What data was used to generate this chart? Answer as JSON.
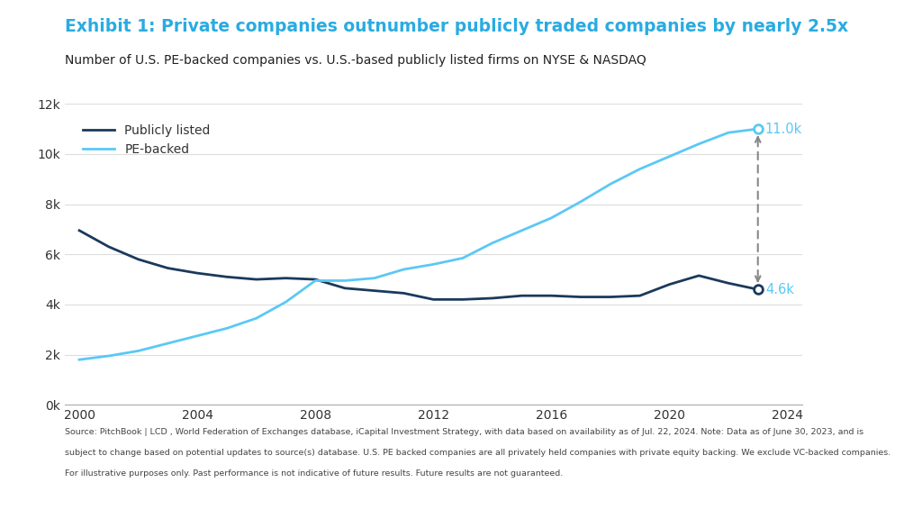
{
  "title": "Exhibit 1: Private companies outnumber publicly traded companies by nearly 2.5x",
  "subtitle": "Number of U.S. PE-backed companies vs. U.S.-based publicly listed firms on NYSE & NASDAQ",
  "title_color": "#29ABE2",
  "subtitle_color": "#222222",
  "footnote_line1": "Source: PitchBook | LCD , World Federation of Exchanges database, iCapital Investment Strategy, with data based on availability as of Jul. 22, 2024. Note: Data as of June 30, 2023, and is",
  "footnote_line2": "subject to change based on potential updates to source(s) database. U.S. PE backed companies are all privately held companies with private equity backing. We exclude VC-backed companies.",
  "footnote_line3": "For illustrative purposes only. Past performance is not indicative of future results. Future results are not guaranteed.",
  "publicly_listed": {
    "years": [
      2000,
      2001,
      2002,
      2003,
      2004,
      2005,
      2006,
      2007,
      2008,
      2009,
      2010,
      2011,
      2012,
      2013,
      2014,
      2015,
      2016,
      2017,
      2018,
      2019,
      2020,
      2021,
      2022,
      2023
    ],
    "values": [
      6950,
      6300,
      5800,
      5450,
      5250,
      5100,
      5000,
      5050,
      5000,
      4650,
      4550,
      4450,
      4200,
      4200,
      4250,
      4350,
      4350,
      4300,
      4300,
      4350,
      4800,
      5150,
      4850,
      4600
    ],
    "color": "#1a3a5c",
    "label": "Publicly listed",
    "linewidth": 2.0
  },
  "pe_backed": {
    "years": [
      2000,
      2001,
      2002,
      2003,
      2004,
      2005,
      2006,
      2007,
      2008,
      2009,
      2010,
      2011,
      2012,
      2013,
      2014,
      2015,
      2016,
      2017,
      2018,
      2019,
      2020,
      2021,
      2022,
      2023
    ],
    "values": [
      1800,
      1950,
      2150,
      2450,
      2750,
      3050,
      3450,
      4100,
      4950,
      4950,
      5050,
      5400,
      5600,
      5850,
      6450,
      6950,
      7450,
      8100,
      8800,
      9400,
      9900,
      10400,
      10850,
      11000
    ],
    "color": "#5BC8F5",
    "label": "PE-backed",
    "linewidth": 2.0
  },
  "ylim": [
    0,
    12000
  ],
  "yticks": [
    0,
    2000,
    4000,
    6000,
    8000,
    10000,
    12000
  ],
  "ytick_labels": [
    "0k",
    "2k",
    "4k",
    "6k",
    "8k",
    "10k",
    "12k"
  ],
  "xlim": [
    1999.5,
    2024.5
  ],
  "xticks": [
    2000,
    2004,
    2008,
    2012,
    2016,
    2020,
    2024
  ],
  "pe_end_label": "11.0k",
  "public_end_label": "4.6k",
  "arrow_color": "#888888",
  "label_color": "#5BC8F5",
  "background_color": "#FFFFFF"
}
